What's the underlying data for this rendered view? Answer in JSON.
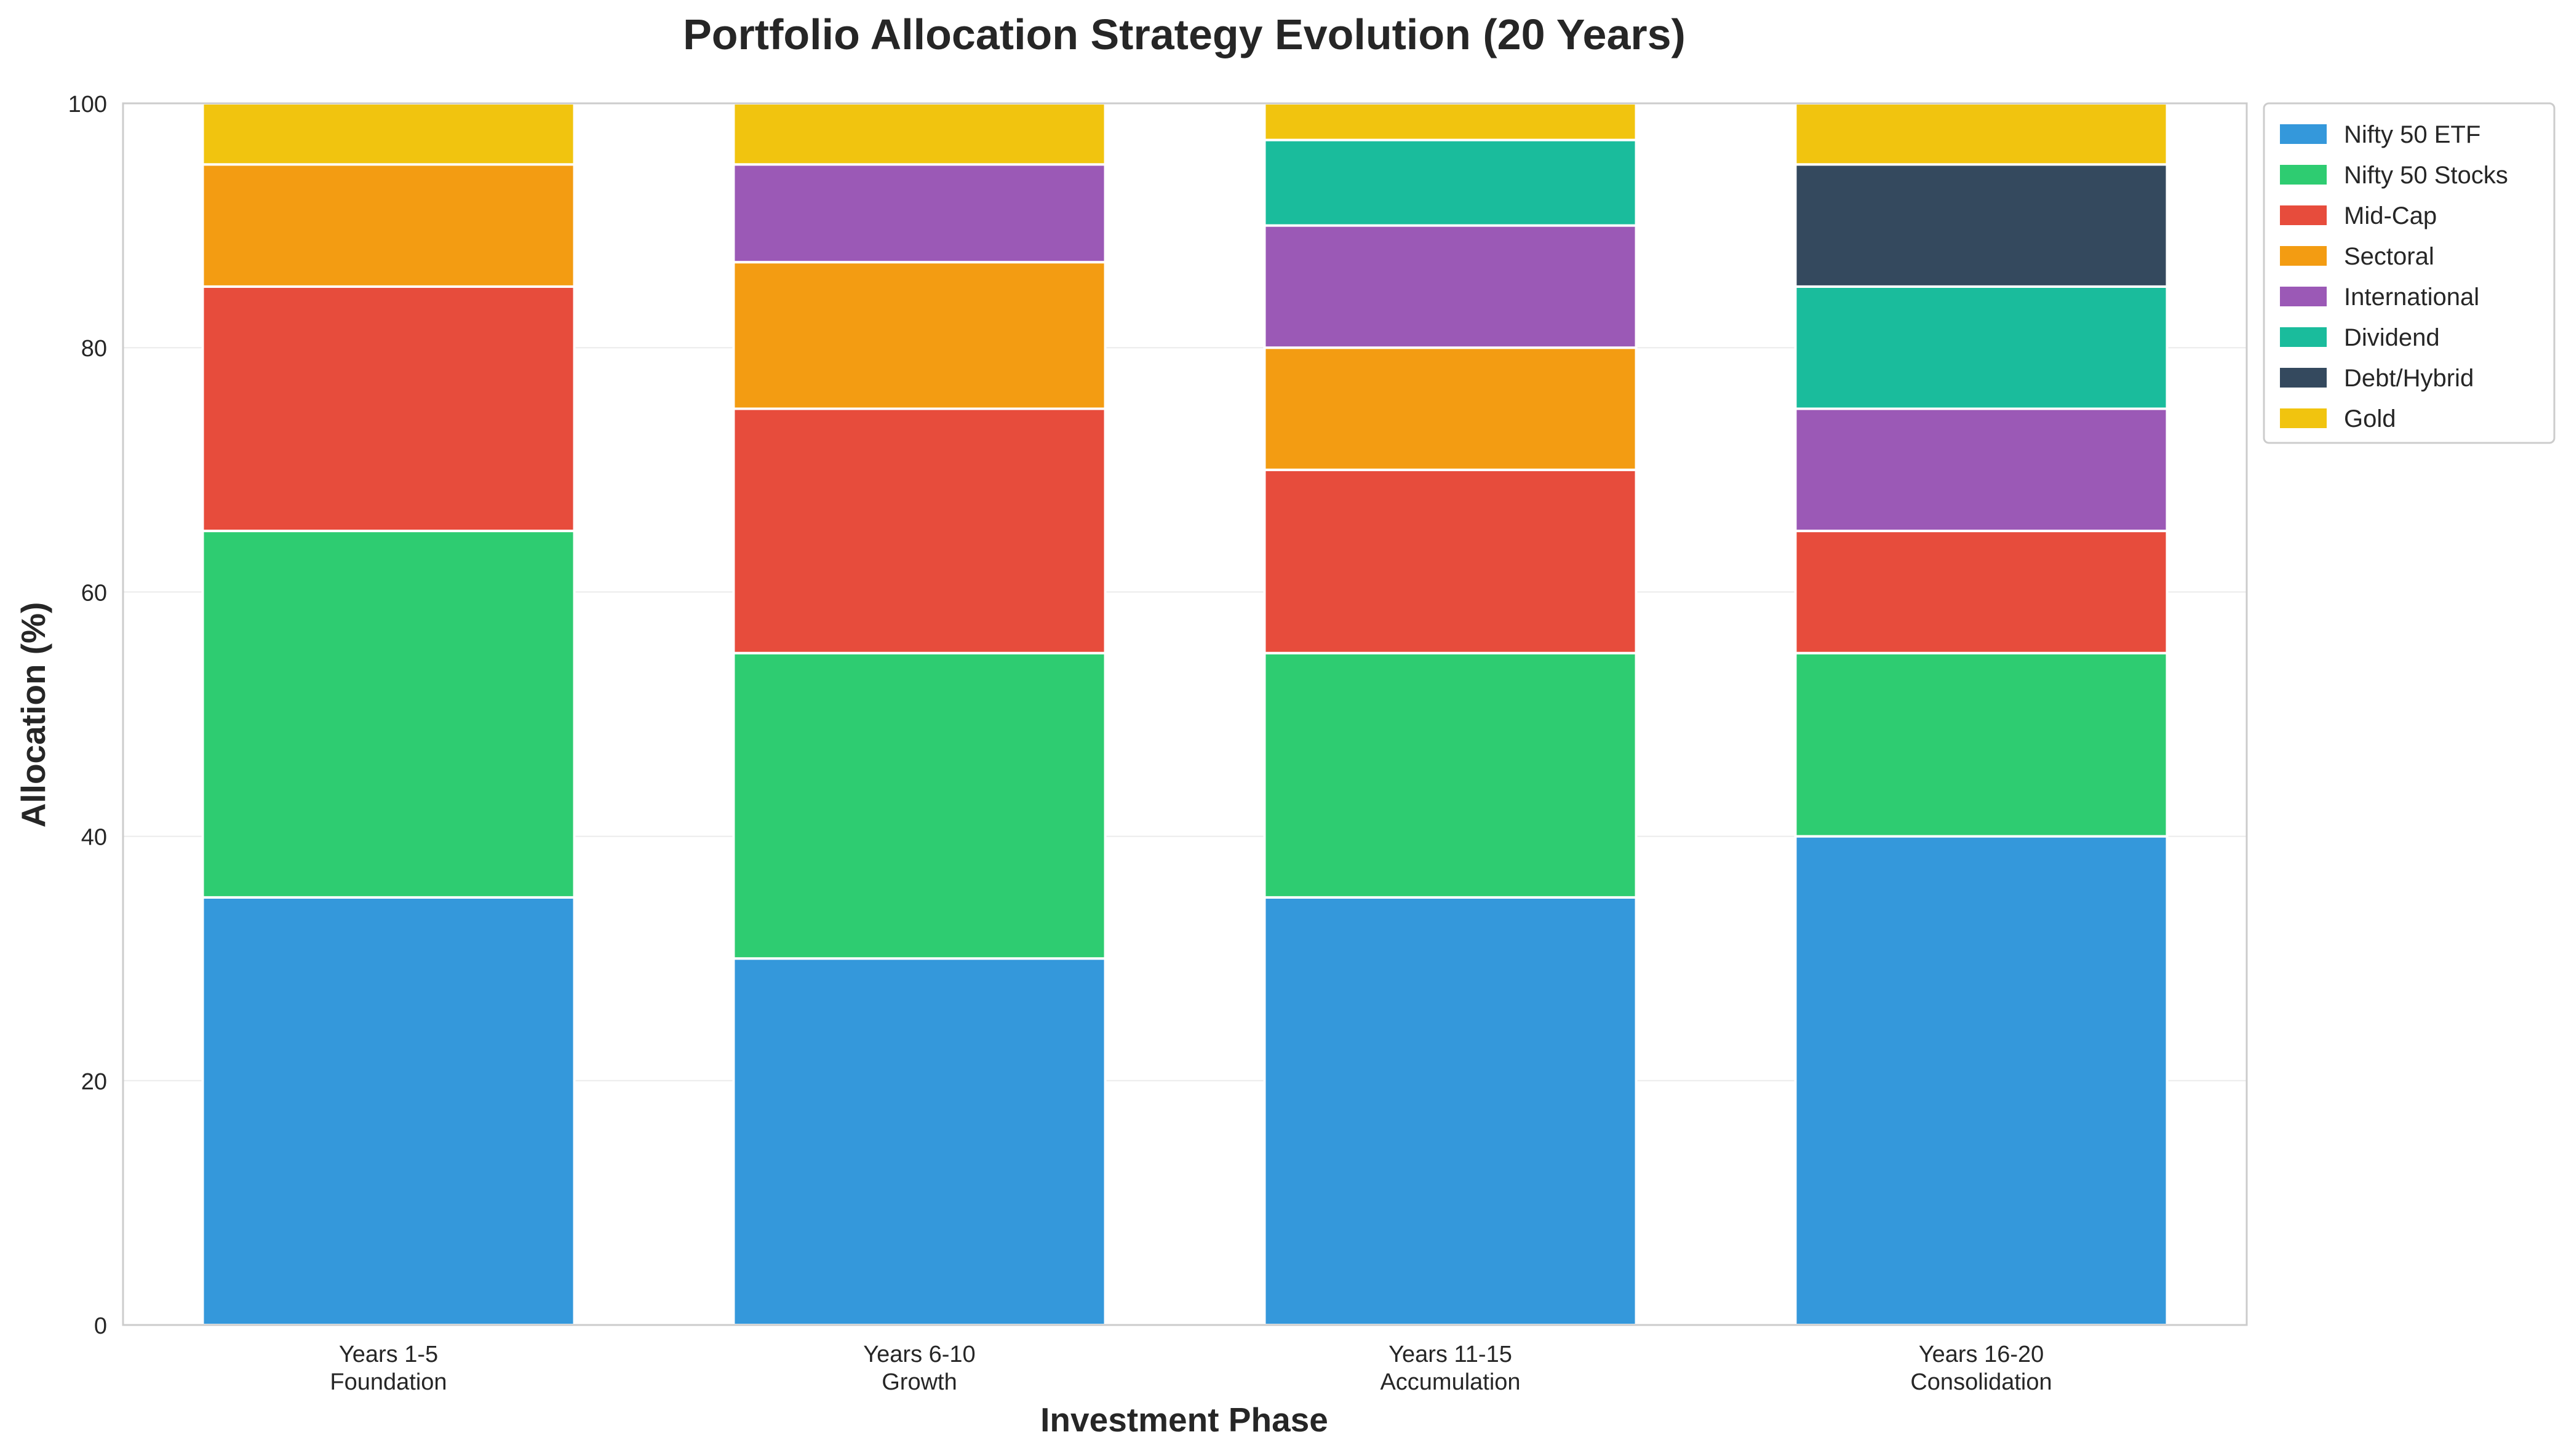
{
  "chart_data": {
    "type": "bar",
    "stacked": true,
    "title": "Portfolio Allocation Strategy Evolution (20 Years)",
    "xlabel": "Investment Phase",
    "ylabel": "Allocation (%)",
    "ylim": [
      0,
      100
    ],
    "yticks": [
      0,
      20,
      40,
      60,
      80,
      100
    ],
    "grid": "horizontal",
    "legend_position": "outside-top-right",
    "categories": [
      [
        "Years 1-5",
        "Foundation"
      ],
      [
        "Years 6-10",
        "Growth"
      ],
      [
        "Years 11-15",
        "Accumulation"
      ],
      [
        "Years 16-20",
        "Consolidation"
      ]
    ],
    "series": [
      {
        "name": "Nifty 50 ETF",
        "color": "#3498db",
        "values": [
          35,
          30,
          35,
          40
        ]
      },
      {
        "name": "Nifty 50 Stocks",
        "color": "#2ecc71",
        "values": [
          30,
          25,
          20,
          15
        ]
      },
      {
        "name": "Mid-Cap",
        "color": "#e74c3c",
        "values": [
          20,
          20,
          15,
          10
        ]
      },
      {
        "name": "Sectoral",
        "color": "#f39c12",
        "values": [
          10,
          12,
          10,
          0
        ]
      },
      {
        "name": "International",
        "color": "#9b59b6",
        "values": [
          0,
          8,
          10,
          10
        ]
      },
      {
        "name": "Dividend",
        "color": "#1abc9c",
        "values": [
          0,
          0,
          7,
          10
        ]
      },
      {
        "name": "Debt/Hybrid",
        "color": "#34495e",
        "values": [
          0,
          0,
          0,
          10
        ]
      },
      {
        "name": "Gold",
        "color": "#f1c40f",
        "values": [
          5,
          5,
          3,
          5
        ]
      }
    ]
  }
}
